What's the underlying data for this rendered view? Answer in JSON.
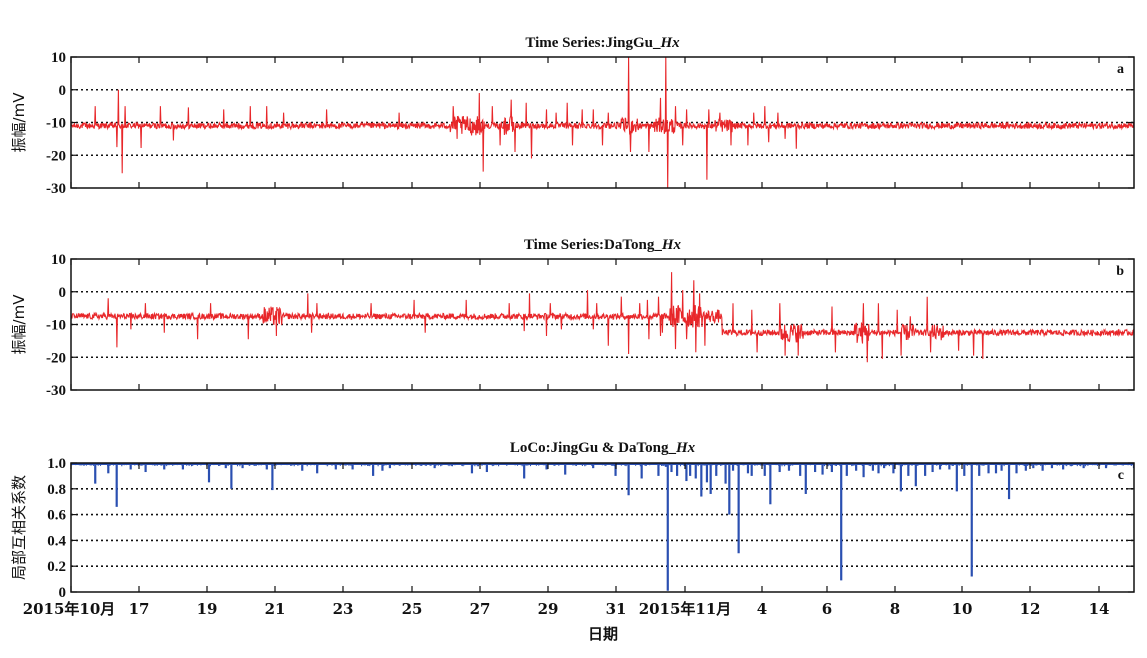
{
  "figure": {
    "xlabel": "日期",
    "x_tick_labels": [
      "2015年10月",
      "17",
      "19",
      "21",
      "23",
      "25",
      "27",
      "29",
      "31",
      "2015年11月",
      "4",
      "6",
      "8",
      "10",
      "12",
      "14"
    ]
  },
  "chart_data": [
    {
      "type": "line",
      "panel": "a",
      "title_prefix": "Time Series:JingGu_",
      "title_suffix": "Hx",
      "ylabel": "振幅/mV",
      "ylim": [
        -30,
        10
      ],
      "yticks": [
        10,
        0,
        -10,
        -20,
        -30
      ],
      "grid_y": [
        0,
        -10,
        -20
      ],
      "color": "#e8272a",
      "baseline": -11,
      "noise": 0.9,
      "spikes": [
        [
          1.3,
          6
        ],
        [
          2.45,
          -6.5
        ],
        [
          2.55,
          11
        ],
        [
          2.75,
          -14.5
        ],
        [
          2.9,
          6
        ],
        [
          3.75,
          -6.8
        ],
        [
          4.8,
          6
        ],
        [
          5.5,
          -4.5
        ],
        [
          6.3,
          5.6
        ],
        [
          8.2,
          5
        ],
        [
          9.6,
          6
        ],
        [
          10.5,
          6
        ],
        [
          11.4,
          4
        ],
        [
          13.7,
          5
        ],
        [
          17.6,
          4
        ],
        [
          20.5,
          6
        ],
        [
          20.7,
          -4
        ],
        [
          21.9,
          10
        ],
        [
          22.1,
          -14
        ],
        [
          22.6,
          6
        ],
        [
          23.0,
          -6
        ],
        [
          23.6,
          8
        ],
        [
          23.8,
          -8
        ],
        [
          24.4,
          7
        ],
        [
          24.7,
          -10
        ],
        [
          25.5,
          5
        ],
        [
          26.0,
          4
        ],
        [
          26.6,
          7
        ],
        [
          26.9,
          -6
        ],
        [
          27.4,
          5
        ],
        [
          28.0,
          5
        ],
        [
          28.5,
          -6
        ],
        [
          28.8,
          4
        ],
        [
          29.9,
          21
        ],
        [
          30.0,
          -8
        ],
        [
          31.0,
          -8
        ],
        [
          31.6,
          8.5
        ],
        [
          31.9,
          21
        ],
        [
          32.0,
          -19.5
        ],
        [
          32.4,
          6
        ],
        [
          32.8,
          -6
        ],
        [
          33.0,
          5
        ],
        [
          34.1,
          -16.5
        ],
        [
          34.2,
          5
        ],
        [
          34.8,
          4
        ],
        [
          35.4,
          -6
        ],
        [
          36.3,
          -6
        ],
        [
          36.6,
          4
        ],
        [
          37.2,
          6
        ],
        [
          37.4,
          -5
        ],
        [
          37.9,
          4
        ],
        [
          38.3,
          -4
        ],
        [
          38.9,
          -7
        ]
      ],
      "bursts": [
        [
          20.3,
          22.2,
          3
        ],
        [
          23.2,
          23.8,
          3
        ],
        [
          29.5,
          30.5,
          2.5
        ],
        [
          31.2,
          32.5,
          2.5
        ],
        [
          34.5,
          35.5,
          2
        ]
      ]
    },
    {
      "type": "line",
      "panel": "b",
      "title_prefix": "Time Series:DaTong_",
      "title_suffix": "Hx",
      "ylabel": "振幅/mV",
      "ylim": [
        -30,
        10
      ],
      "yticks": [
        10,
        0,
        -10,
        -20,
        -30
      ],
      "grid_y": [
        0,
        -10,
        -20
      ],
      "color": "#e8272a",
      "baseline": -7.5,
      "baseline_step": [
        34.9,
        -12.5
      ],
      "noise": 0.9,
      "spikes": [
        [
          2.0,
          5.5
        ],
        [
          2.45,
          -9.5
        ],
        [
          3.2,
          -4
        ],
        [
          4.0,
          4
        ],
        [
          5.0,
          -5
        ],
        [
          6.8,
          -7
        ],
        [
          7.5,
          4
        ],
        [
          9.5,
          -7
        ],
        [
          11.0,
          -6
        ],
        [
          12.7,
          7
        ],
        [
          12.9,
          -5
        ],
        [
          13.2,
          4
        ],
        [
          16.1,
          4
        ],
        [
          18.4,
          5
        ],
        [
          19.0,
          -5
        ],
        [
          21.2,
          5
        ],
        [
          23.5,
          4
        ],
        [
          24.3,
          -4.5
        ],
        [
          24.6,
          7
        ],
        [
          25.5,
          -6
        ],
        [
          25.7,
          4
        ],
        [
          26.3,
          -4
        ],
        [
          27.7,
          8
        ],
        [
          28.0,
          -4
        ],
        [
          28.2,
          4
        ],
        [
          28.8,
          -9
        ],
        [
          29.5,
          6
        ],
        [
          29.9,
          -11.5
        ],
        [
          30.5,
          4
        ],
        [
          30.9,
          5
        ],
        [
          31.0,
          -7
        ],
        [
          31.5,
          6
        ],
        [
          31.6,
          -6
        ],
        [
          31.7,
          -5
        ],
        [
          32.2,
          13.5
        ],
        [
          32.4,
          -10
        ],
        [
          32.8,
          8
        ],
        [
          33.0,
          -7
        ],
        [
          33.4,
          11
        ],
        [
          33.5,
          -11
        ],
        [
          33.7,
          7
        ],
        [
          34.0,
          -9
        ],
        [
          35.5,
          9
        ],
        [
          36.5,
          7
        ],
        [
          36.8,
          -6
        ],
        [
          38.0,
          9
        ],
        [
          38.3,
          -7
        ],
        [
          39.0,
          -7
        ],
        [
          40.8,
          8
        ],
        [
          41.0,
          -6
        ],
        [
          42.5,
          9
        ],
        [
          42.7,
          -9
        ],
        [
          43.3,
          9
        ],
        [
          43.5,
          -8
        ],
        [
          44.3,
          7
        ],
        [
          44.5,
          -7
        ],
        [
          45.0,
          5
        ],
        [
          45.9,
          11
        ],
        [
          46.1,
          -6
        ],
        [
          47.6,
          -5.5
        ],
        [
          48.4,
          -7
        ],
        [
          48.9,
          -8
        ]
      ],
      "bursts": [
        [
          10.3,
          11.3,
          3
        ],
        [
          32.0,
          33.9,
          3.5
        ],
        [
          38.0,
          39.3,
          3
        ],
        [
          42.0,
          42.8,
          3.5
        ],
        [
          44.5,
          45.3,
          2.5
        ],
        [
          46.1,
          46.8,
          2.5
        ],
        [
          32.0,
          34.8,
          2
        ]
      ]
    },
    {
      "type": "bar",
      "panel": "c",
      "title_prefix": "LoCo:JingGu & DaTong_",
      "title_suffix": "Hx",
      "ylabel": "局部互相关系数",
      "ylim": [
        0,
        1.0
      ],
      "yticks": [
        1.0,
        0.8,
        0.6,
        0.4,
        0.2,
        0
      ],
      "grid_y": [
        0.8,
        0.6,
        0.4,
        0.2
      ],
      "color": "#2a4fb1",
      "dips": [
        [
          1.3,
          0.84
        ],
        [
          2.0,
          0.92
        ],
        [
          2.45,
          0.66
        ],
        [
          3.2,
          0.95
        ],
        [
          4.0,
          0.93
        ],
        [
          5.0,
          0.95
        ],
        [
          6.0,
          0.95
        ],
        [
          7.4,
          0.85
        ],
        [
          8.3,
          0.96
        ],
        [
          8.6,
          0.8
        ],
        [
          9.2,
          0.96
        ],
        [
          10.5,
          0.95
        ],
        [
          10.8,
          0.79
        ],
        [
          12.4,
          0.94
        ],
        [
          13.2,
          0.92
        ],
        [
          14.2,
          0.95
        ],
        [
          15.1,
          0.95
        ],
        [
          16.2,
          0.9
        ],
        [
          16.7,
          0.94
        ],
        [
          17.1,
          0.96
        ],
        [
          19.5,
          0.96
        ],
        [
          21.5,
          0.92
        ],
        [
          22.3,
          0.93
        ],
        [
          24.3,
          0.88
        ],
        [
          25.5,
          0.95
        ],
        [
          26.5,
          0.91
        ],
        [
          28.0,
          0.96
        ],
        [
          29.2,
          0.9
        ],
        [
          29.9,
          0.75
        ],
        [
          30.6,
          0.88
        ],
        [
          31.5,
          0.9
        ],
        [
          31.9,
          0.97
        ],
        [
          32.0,
          0.01
        ],
        [
          32.2,
          0.93
        ],
        [
          32.5,
          0.9
        ],
        [
          33.0,
          0.86
        ],
        [
          33.2,
          0.9
        ],
        [
          33.5,
          0.88
        ],
        [
          33.8,
          0.74
        ],
        [
          34.1,
          0.85
        ],
        [
          34.3,
          0.76
        ],
        [
          34.6,
          0.9
        ],
        [
          35.1,
          0.84
        ],
        [
          35.3,
          0.6
        ],
        [
          35.5,
          0.94
        ],
        [
          35.8,
          0.3
        ],
        [
          36.3,
          0.92
        ],
        [
          36.5,
          0.9
        ],
        [
          37.2,
          0.9
        ],
        [
          37.5,
          0.68
        ],
        [
          38.0,
          0.93
        ],
        [
          38.5,
          0.94
        ],
        [
          39.1,
          0.9
        ],
        [
          39.4,
          0.76
        ],
        [
          39.9,
          0.93
        ],
        [
          40.3,
          0.91
        ],
        [
          40.8,
          0.93
        ],
        [
          41.3,
          0.09
        ],
        [
          41.6,
          0.9
        ],
        [
          42.1,
          0.94
        ],
        [
          42.5,
          0.89
        ],
        [
          43.0,
          0.94
        ],
        [
          43.3,
          0.92
        ],
        [
          43.6,
          0.96
        ],
        [
          44.1,
          0.92
        ],
        [
          44.5,
          0.78
        ],
        [
          44.9,
          0.9
        ],
        [
          45.3,
          0.82
        ],
        [
          45.8,
          0.9
        ],
        [
          46.2,
          0.93
        ],
        [
          46.6,
          0.95
        ],
        [
          47.1,
          0.95
        ],
        [
          47.5,
          0.78
        ],
        [
          47.9,
          0.9
        ],
        [
          48.3,
          0.12
        ],
        [
          48.7,
          0.9
        ],
        [
          49.2,
          0.92
        ],
        [
          49.6,
          0.92
        ],
        [
          49.9,
          0.94
        ],
        [
          50.3,
          0.72
        ],
        [
          50.7,
          0.92
        ],
        [
          51.2,
          0.94
        ],
        [
          51.6,
          0.96
        ],
        [
          52.1,
          0.94
        ],
        [
          52.6,
          0.96
        ],
        [
          53.2,
          0.95
        ],
        [
          54.3,
          0.96
        ],
        [
          55.5,
          0.96
        ],
        [
          57.0,
          0.96
        ]
      ]
    }
  ]
}
